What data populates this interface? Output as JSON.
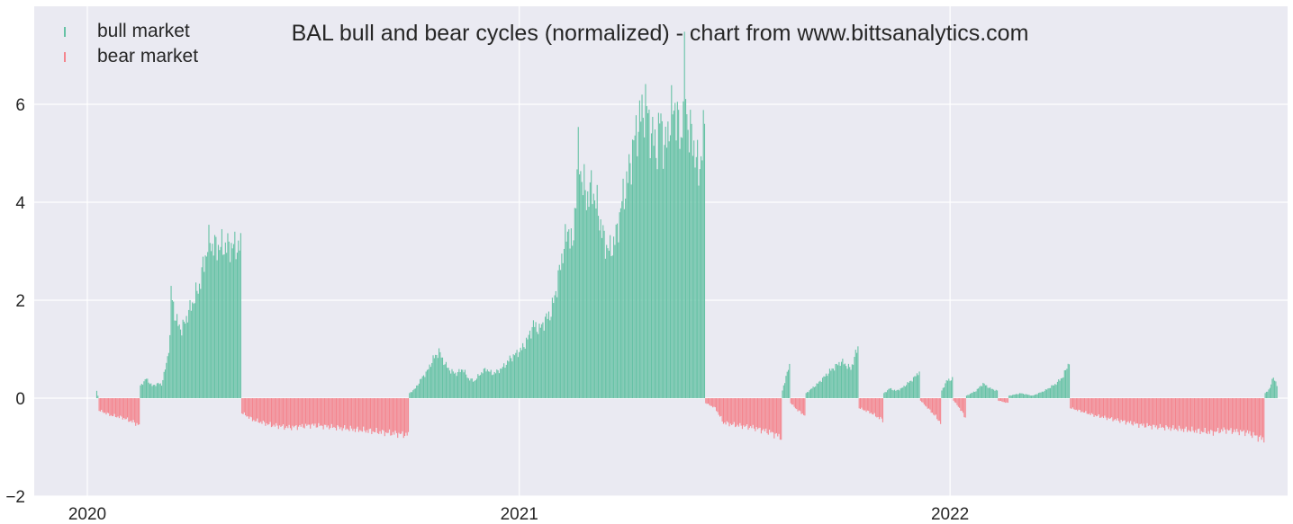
{
  "chart_data": {
    "type": "bar",
    "title": "BAL bull and bear cycles (normalized)  - chart from www.bittsanalytics.com",
    "xlabel": "",
    "ylabel": "",
    "ylim": [
      -2,
      8
    ],
    "yticks": [
      -2,
      0,
      2,
      4,
      6
    ],
    "ytick_labels": [
      "−2",
      "0",
      "2",
      "4",
      "6"
    ],
    "x_range": [
      "2019-11-17",
      "2022-10-14"
    ],
    "xticks": [
      "2020-01-01",
      "2021-01-01",
      "2022-01-01"
    ],
    "xtick_labels": [
      "2020",
      "2021",
      "2022"
    ],
    "grid": true,
    "legend": {
      "position": "top-left",
      "entries": [
        "bull market",
        "bear market"
      ]
    },
    "colors": {
      "bull": "#66c2a5",
      "bear": "#f4858e",
      "background": "#eaeaf2",
      "grid": "#ffffff"
    },
    "series": [
      {
        "name": "bull market",
        "segments": [
          {
            "start": "2020-01-09",
            "end": "2020-01-10",
            "values": [
              0.15,
              0.05
            ]
          },
          {
            "start": "2020-02-15",
            "end": "2020-05-10",
            "anchors": [
              [
                0,
                0.25
              ],
              [
                5,
                0.4
              ],
              [
                10,
                0.25
              ],
              [
                15,
                0.3
              ],
              [
                18,
                0.28
              ],
              [
                22,
                0.7
              ],
              [
                25,
                1.2
              ],
              [
                26,
                2.2
              ],
              [
                30,
                1.6
              ],
              [
                35,
                1.4
              ],
              [
                40,
                1.7
              ],
              [
                45,
                2.0
              ],
              [
                50,
                2.3
              ],
              [
                55,
                2.9
              ],
              [
                59,
                3.25
              ],
              [
                61,
                3.1
              ]
            ]
          },
          {
            "start": "2020-09-30",
            "end": "2021-06-07",
            "anchors": [
              [
                0,
                0.1
              ],
              [
                5,
                0.2
              ],
              [
                10,
                0.4
              ],
              [
                15,
                0.55
              ],
              [
                20,
                0.8
              ],
              [
                25,
                0.95
              ],
              [
                30,
                0.7
              ],
              [
                35,
                0.55
              ],
              [
                40,
                0.5
              ],
              [
                45,
                0.6
              ],
              [
                50,
                0.4
              ],
              [
                55,
                0.35
              ],
              [
                60,
                0.5
              ],
              [
                65,
                0.6
              ],
              [
                70,
                0.5
              ],
              [
                75,
                0.55
              ],
              [
                80,
                0.65
              ],
              [
                85,
                0.8
              ],
              [
                90,
                0.9
              ],
              [
                95,
                1.0
              ],
              [
                100,
                1.2
              ],
              [
                105,
                1.5
              ],
              [
                110,
                1.4
              ],
              [
                115,
                1.6
              ],
              [
                120,
                1.75
              ],
              [
                125,
                2.3
              ],
              [
                130,
                3.0
              ],
              [
                135,
                3.5
              ],
              [
                138,
                3.0
              ],
              [
                141,
                4.2
              ],
              [
                143,
                5.0
              ],
              [
                146,
                4.5
              ],
              [
                150,
                4.1
              ],
              [
                155,
                4.3
              ],
              [
                160,
                3.8
              ],
              [
                165,
                3.2
              ],
              [
                170,
                3.0
              ],
              [
                175,
                3.3
              ],
              [
                180,
                4.0
              ],
              [
                185,
                4.5
              ],
              [
                190,
                5.2
              ],
              [
                195,
                5.7
              ],
              [
                200,
                6.0
              ],
              [
                205,
                5.4
              ],
              [
                210,
                5.1
              ],
              [
                213,
                5.8
              ],
              [
                216,
                5.0
              ],
              [
                220,
                5.6
              ],
              [
                225,
                6.0
              ],
              [
                230,
                5.2
              ],
              [
                233,
                6.7
              ],
              [
                236,
                5.5
              ],
              [
                240,
                5.3
              ],
              [
                245,
                4.6
              ],
              [
                250,
                5.5
              ],
              [
                254,
                6.1
              ],
              [
                256,
                7.25
              ]
            ]
          },
          {
            "start": "2021-08-12",
            "end": "2021-08-18",
            "anchors": [
              [
                0,
                0.15
              ],
              [
                3,
                0.45
              ],
              [
                6,
                0.65
              ]
            ]
          },
          {
            "start": "2021-09-01",
            "end": "2021-10-15",
            "anchors": [
              [
                0,
                0.1
              ],
              [
                10,
                0.3
              ],
              [
                20,
                0.55
              ],
              [
                30,
                0.75
              ],
              [
                38,
                0.6
              ],
              [
                44,
                1.05
              ]
            ]
          },
          {
            "start": "2021-11-06",
            "end": "2021-12-06",
            "anchors": [
              [
                0,
                0.1
              ],
              [
                5,
                0.2
              ],
              [
                10,
                0.15
              ],
              [
                15,
                0.2
              ],
              [
                20,
                0.3
              ],
              [
                25,
                0.4
              ],
              [
                30,
                0.55
              ]
            ]
          },
          {
            "start": "2021-12-25",
            "end": "2022-01-03",
            "anchors": [
              [
                0,
                0.15
              ],
              [
                4,
                0.35
              ],
              [
                9,
                0.4
              ]
            ]
          },
          {
            "start": "2022-01-15",
            "end": "2022-02-10",
            "anchors": [
              [
                0,
                0.05
              ],
              [
                8,
                0.15
              ],
              [
                14,
                0.3
              ],
              [
                20,
                0.2
              ],
              [
                26,
                0.15
              ]
            ]
          },
          {
            "start": "2022-02-20",
            "end": "2022-04-12",
            "anchors": [
              [
                0,
                0.05
              ],
              [
                10,
                0.1
              ],
              [
                20,
                0.05
              ],
              [
                30,
                0.15
              ],
              [
                40,
                0.3
              ],
              [
                46,
                0.45
              ],
              [
                51,
                0.75
              ]
            ]
          },
          {
            "start": "2022-09-25",
            "end": "2022-10-05",
            "anchors": [
              [
                0,
                0.1
              ],
              [
                4,
                0.2
              ],
              [
                7,
                0.45
              ],
              [
                10,
                0.25
              ]
            ]
          }
        ]
      },
      {
        "name": "bear market",
        "segments": [
          {
            "start": "2020-01-11",
            "end": "2020-02-14",
            "anchors": [
              [
                0,
                -0.25
              ],
              [
                10,
                -0.35
              ],
              [
                20,
                -0.4
              ],
              [
                30,
                -0.5
              ],
              [
                34,
                -0.55
              ]
            ]
          },
          {
            "start": "2020-05-11",
            "end": "2020-09-29",
            "anchors": [
              [
                0,
                -0.3
              ],
              [
                10,
                -0.45
              ],
              [
                25,
                -0.55
              ],
              [
                40,
                -0.6
              ],
              [
                60,
                -0.55
              ],
              [
                80,
                -0.6
              ],
              [
                100,
                -0.65
              ],
              [
                120,
                -0.7
              ],
              [
                141,
                -0.75
              ]
            ]
          },
          {
            "start": "2021-06-08",
            "end": "2021-08-11",
            "anchors": [
              [
                0,
                -0.1
              ],
              [
                8,
                -0.2
              ],
              [
                15,
                -0.5
              ],
              [
                25,
                -0.55
              ],
              [
                40,
                -0.6
              ],
              [
                55,
                -0.7
              ],
              [
                64,
                -0.8
              ]
            ]
          },
          {
            "start": "2021-08-19",
            "end": "2021-08-31",
            "anchors": [
              [
                0,
                -0.1
              ],
              [
                6,
                -0.25
              ],
              [
                12,
                -0.35
              ]
            ]
          },
          {
            "start": "2021-10-16",
            "end": "2021-11-05",
            "anchors": [
              [
                0,
                -0.2
              ],
              [
                10,
                -0.3
              ],
              [
                20,
                -0.45
              ]
            ]
          },
          {
            "start": "2021-12-07",
            "end": "2021-12-24",
            "anchors": [
              [
                0,
                -0.05
              ],
              [
                6,
                -0.2
              ],
              [
                12,
                -0.35
              ],
              [
                17,
                -0.5
              ]
            ]
          },
          {
            "start": "2022-01-04",
            "end": "2022-01-14",
            "anchors": [
              [
                0,
                -0.05
              ],
              [
                5,
                -0.2
              ],
              [
                10,
                -0.4
              ]
            ]
          },
          {
            "start": "2022-02-11",
            "end": "2022-02-19",
            "anchors": [
              [
                0,
                -0.05
              ],
              [
                8,
                -0.1
              ]
            ]
          },
          {
            "start": "2022-04-13",
            "end": "2022-09-24",
            "anchors": [
              [
                0,
                -0.2
              ],
              [
                20,
                -0.35
              ],
              [
                40,
                -0.45
              ],
              [
                60,
                -0.55
              ],
              [
                80,
                -0.6
              ],
              [
                100,
                -0.65
              ],
              [
                120,
                -0.7
              ],
              [
                130,
                -0.65
              ],
              [
                150,
                -0.7
              ],
              [
                164,
                -0.85
              ]
            ]
          }
        ]
      }
    ]
  }
}
